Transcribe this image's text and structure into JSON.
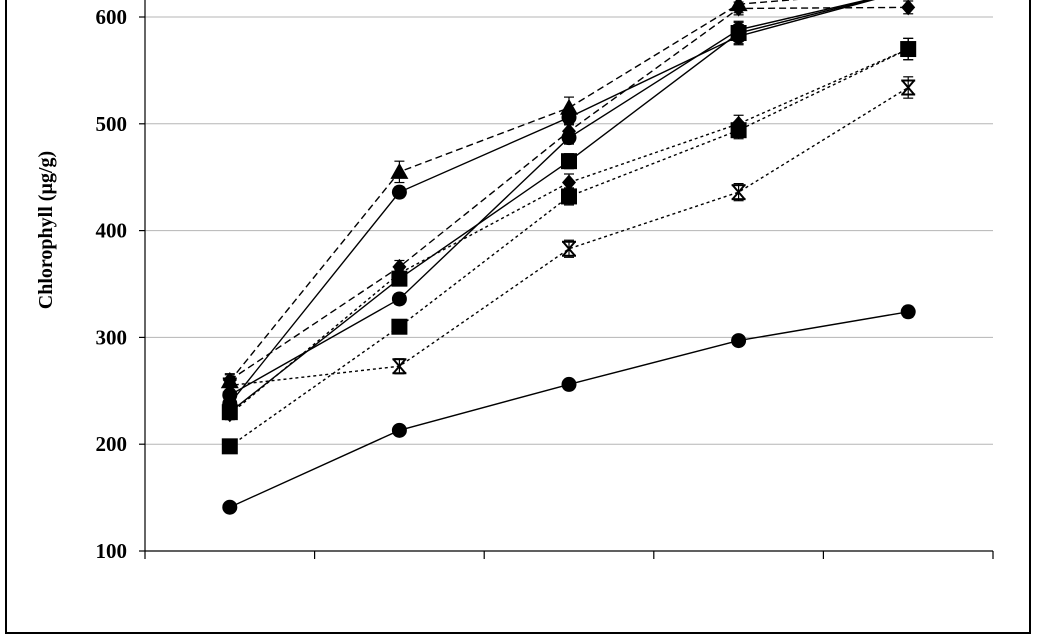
{
  "chart_data": {
    "type": "line",
    "title": "",
    "xlabel": "",
    "ylabel": "Chlorophyll (µg/g)",
    "ylim": [
      100,
      600
    ],
    "yticks": [
      100,
      200,
      300,
      400,
      500,
      600
    ],
    "grid": true,
    "x": [
      1,
      2,
      3,
      4,
      5
    ],
    "series": [
      {
        "values": [
          141,
          213,
          256,
          297,
          324
        ],
        "marker": "circle",
        "dash": "solid",
        "err": [
          4,
          4,
          4,
          4,
          5
        ]
      },
      {
        "values": [
          246,
          336,
          487,
          588,
          625
        ],
        "marker": "circle",
        "dash": "solid",
        "err": [
          5,
          5,
          6,
          8,
          8
        ]
      },
      {
        "values": [
          238,
          436,
          506,
          582,
          625
        ],
        "marker": "circle",
        "dash": "solid",
        "err": [
          5,
          5,
          6,
          8,
          8
        ]
      },
      {
        "values": [
          230,
          355,
          465,
          585,
          625
        ],
        "marker": "square",
        "dash": "solid",
        "err": [
          5,
          6,
          7,
          10,
          8
        ]
      },
      {
        "values": [
          259,
          455,
          515,
          612,
          625
        ],
        "marker": "triangle",
        "dash": "dashed",
        "err": [
          6,
          10,
          10,
          8,
          8
        ]
      },
      {
        "values": [
          260,
          366,
          493,
          608,
          609
        ],
        "marker": "diamond",
        "dash": "dashed",
        "err": [
          6,
          6,
          6,
          6,
          6
        ]
      },
      {
        "values": [
          198,
          310,
          432,
          494,
          570
        ],
        "marker": "square",
        "dash": "dotted",
        "err": [
          5,
          6,
          8,
          8,
          10
        ]
      },
      {
        "values": [
          228,
          360,
          445,
          500,
          570
        ],
        "marker": "diamond",
        "dash": "dotted",
        "err": [
          5,
          6,
          8,
          8,
          10
        ]
      },
      {
        "values": [
          255,
          273,
          383,
          436,
          534
        ],
        "marker": "xbar",
        "dash": "dotted",
        "err": [
          5,
          7,
          8,
          8,
          10
        ]
      }
    ],
    "colors": {
      "line": "#000000",
      "grid": "#b5b5b5",
      "background": "#ffffff"
    }
  }
}
